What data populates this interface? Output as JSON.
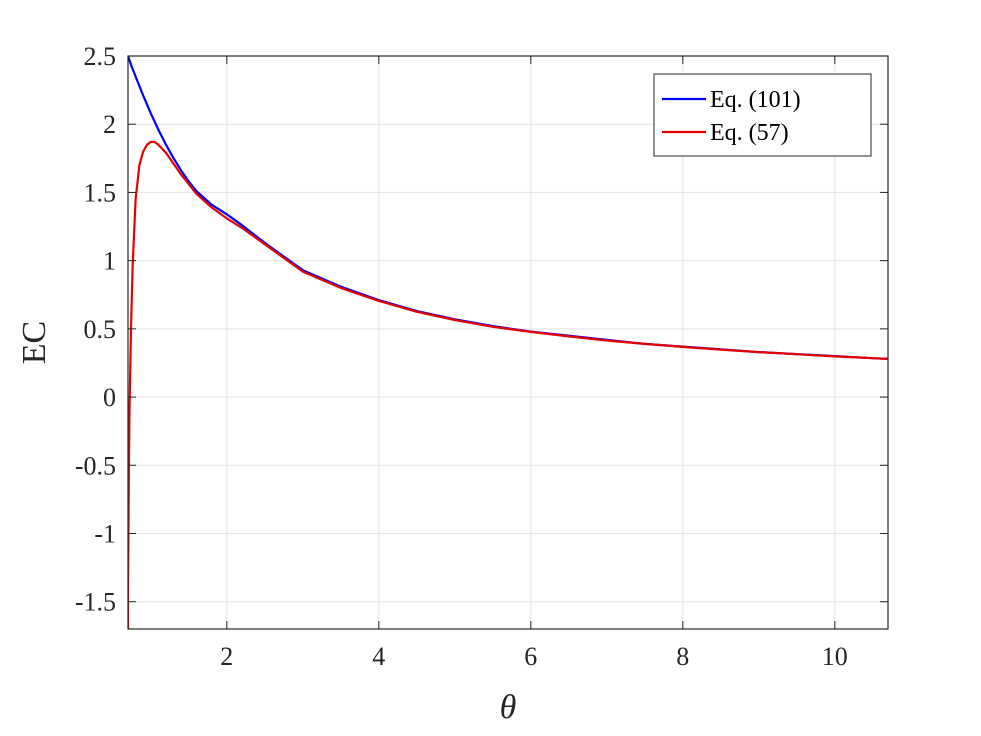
{
  "chart_data": {
    "type": "line",
    "title": "",
    "xlabel": "θ",
    "ylabel": "EC",
    "xlim": [
      0.7,
      10.7
    ],
    "ylim": [
      -1.7,
      2.5
    ],
    "xticks": [
      2,
      4,
      6,
      8,
      10
    ],
    "xtick_labels": [
      "2",
      "4",
      "6",
      "8",
      "10"
    ],
    "yticks": [
      -1.5,
      -1,
      -0.5,
      0,
      0.5,
      1,
      1.5,
      2,
      2.5
    ],
    "ytick_labels": [
      "-1.5",
      "-1",
      "-0.5",
      "0",
      "0.5",
      "1",
      "1.5",
      "2",
      "2.5"
    ],
    "grid": true,
    "legend_position": "top-right",
    "series": [
      {
        "name": "Eq. (101)",
        "color": "#0000ff",
        "x": [
          0.7,
          0.75,
          0.8,
          0.9,
          1.0,
          1.1,
          1.2,
          1.3,
          1.4,
          1.5,
          1.6,
          1.8,
          2.0,
          2.2,
          2.5,
          3.0,
          3.5,
          4.0,
          4.5,
          5.0,
          5.5,
          6.0,
          6.5,
          7.0,
          7.5,
          8.0,
          8.5,
          9.0,
          9.5,
          10.0,
          10.5,
          10.7
        ],
        "y": [
          2.5,
          2.42,
          2.35,
          2.21,
          2.08,
          1.96,
          1.85,
          1.75,
          1.66,
          1.58,
          1.51,
          1.41,
          1.34,
          1.26,
          1.13,
          0.93,
          0.81,
          0.71,
          0.63,
          0.57,
          0.52,
          0.48,
          0.45,
          0.42,
          0.39,
          0.37,
          0.35,
          0.33,
          0.315,
          0.3,
          0.285,
          0.28
        ]
      },
      {
        "name": "Eq. (57)",
        "color": "#e60000",
        "x": [
          0.7,
          0.7,
          0.705,
          0.71,
          0.72,
          0.74,
          0.76,
          0.8,
          0.85,
          0.9,
          0.95,
          1.0,
          1.05,
          1.1,
          1.2,
          1.3,
          1.4,
          1.5,
          1.6,
          1.8,
          2.0,
          2.2,
          2.5,
          3.0,
          3.5,
          4.0,
          4.5,
          5.0,
          5.5,
          6.0,
          6.5,
          7.0,
          7.5,
          8.0,
          8.5,
          9.0,
          9.5,
          10.0,
          10.5,
          10.7
        ],
        "y": [
          -1.7,
          -1.4,
          -1.0,
          -0.6,
          -0.1,
          0.5,
          0.95,
          1.45,
          1.7,
          1.8,
          1.85,
          1.87,
          1.87,
          1.85,
          1.79,
          1.71,
          1.63,
          1.56,
          1.49,
          1.39,
          1.31,
          1.24,
          1.12,
          0.92,
          0.8,
          0.705,
          0.625,
          0.565,
          0.515,
          0.478,
          0.445,
          0.415,
          0.39,
          0.368,
          0.347,
          0.33,
          0.314,
          0.298,
          0.285,
          0.28
        ]
      }
    ]
  }
}
